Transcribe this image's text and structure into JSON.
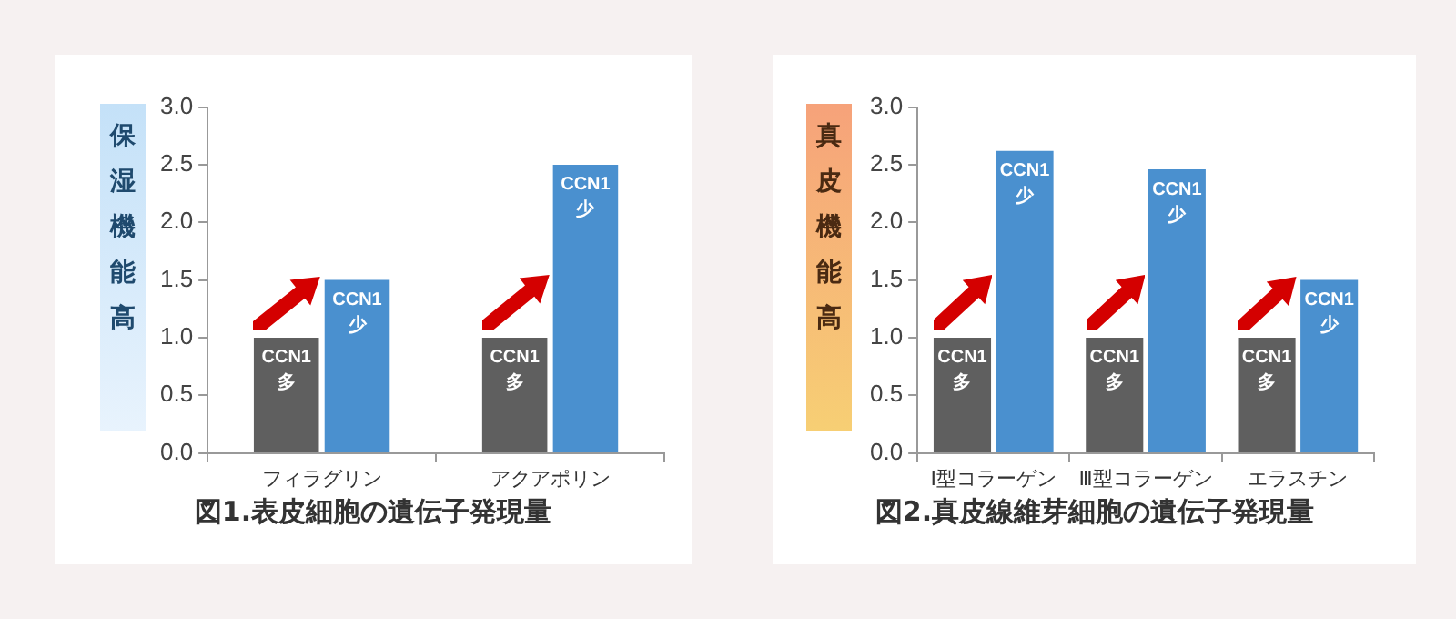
{
  "chart_data": [
    {
      "type": "bar",
      "title": "図1.表皮細胞の遺伝子発現量",
      "ylabel": "保湿機能高",
      "categories": [
        "フィラグリン",
        "アクアポリン"
      ],
      "series": [
        {
          "name": "CCN1 多",
          "color": "#5f5f5f",
          "values": [
            1.0,
            1.0
          ]
        },
        {
          "name": "CCN1 少",
          "color": "#4a90cf",
          "values": [
            1.5,
            2.5
          ]
        }
      ],
      "ylim": [
        0,
        3
      ],
      "yticks": [
        {
          "value": 0,
          "label": "0.0"
        },
        {
          "value": 0.5,
          "label": "0.5"
        },
        {
          "value": 1,
          "label": "1.0"
        },
        {
          "value": 1.5,
          "label": "1.5"
        },
        {
          "value": 2,
          "label": "2.0"
        },
        {
          "value": 2.5,
          "label": "2.5"
        },
        {
          "value": 3,
          "label": "3.0"
        }
      ],
      "legend": false
    },
    {
      "type": "bar",
      "title": "図2.真皮線維芽細胞の遺伝子発現量",
      "ylabel": "真皮機能高",
      "categories": [
        "Ⅰ型コラーゲン",
        "Ⅲ型コラーゲン",
        "エラスチン"
      ],
      "series": [
        {
          "name": "CCN1 多",
          "color": "#5f5f5f",
          "values": [
            1.0,
            1.0,
            1.0
          ]
        },
        {
          "name": "CCN1 少",
          "color": "#4a90cf",
          "values": [
            2.62,
            2.46,
            1.5
          ]
        }
      ],
      "ylim": [
        0,
        3
      ],
      "yticks": [
        {
          "value": 0,
          "label": "0.0"
        },
        {
          "value": 0.5,
          "label": "0.5"
        },
        {
          "value": 1,
          "label": "1.0"
        },
        {
          "value": 1.5,
          "label": "1.5"
        },
        {
          "value": 2,
          "label": "2.0"
        },
        {
          "value": 2.5,
          "label": "2.5"
        },
        {
          "value": 3,
          "label": "3.0"
        }
      ],
      "legend": false
    }
  ]
}
